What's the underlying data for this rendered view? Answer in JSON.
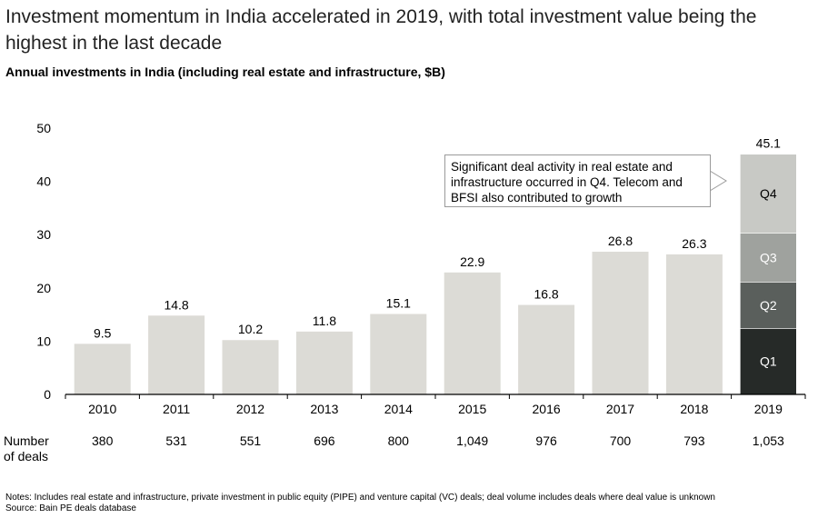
{
  "headline": "Investment momentum in India accelerated in 2019, with total investment value being the highest in the last decade",
  "colors": {
    "bar": "#dcdbd6",
    "q1": "#262a28",
    "q2": "#5a5f5c",
    "q3": "#9fa29e",
    "q4": "#c8c9c5",
    "axis": "#000000"
  },
  "chart_data": {
    "type": "bar",
    "title": "Annual investments in India (including real estate and infrastructure, $B)",
    "categories": [
      "2010",
      "2011",
      "2012",
      "2013",
      "2014",
      "2015",
      "2016",
      "2017",
      "2018",
      "2019"
    ],
    "values": [
      9.5,
      14.8,
      10.2,
      11.8,
      15.1,
      22.9,
      16.8,
      26.8,
      26.3,
      45.1
    ],
    "value_labels": [
      "9.5",
      "14.8",
      "10.2",
      "11.8",
      "15.1",
      "22.9",
      "16.8",
      "26.8",
      "26.3",
      "45.1"
    ],
    "ylim": [
      0,
      50
    ],
    "yticks": [
      "0",
      "10",
      "20",
      "30",
      "40",
      "50"
    ],
    "stacked_last": {
      "category": "2019",
      "segments": [
        {
          "name": "Q1",
          "value": 12.4
        },
        {
          "name": "Q2",
          "value": 8.7
        },
        {
          "name": "Q3",
          "value": 9.2
        },
        {
          "name": "Q4",
          "value": 14.8
        }
      ]
    },
    "deals_label": "Number of deals",
    "deals": [
      "380",
      "531",
      "551",
      "696",
      "800",
      "1,049",
      "976",
      "700",
      "793",
      "1,053"
    ],
    "annotation": "Significant deal activity in real estate and infrastructure occurred in Q4. Telecom and BFSI also contributed to growth",
    "grid": false
  },
  "notes": "Notes: Includes real estate and infrastructure, private investment in public equity (PIPE) and venture capital (VC) deals; deal volume includes deals where deal value is unknown",
  "source": "Source: Bain PE deals database"
}
